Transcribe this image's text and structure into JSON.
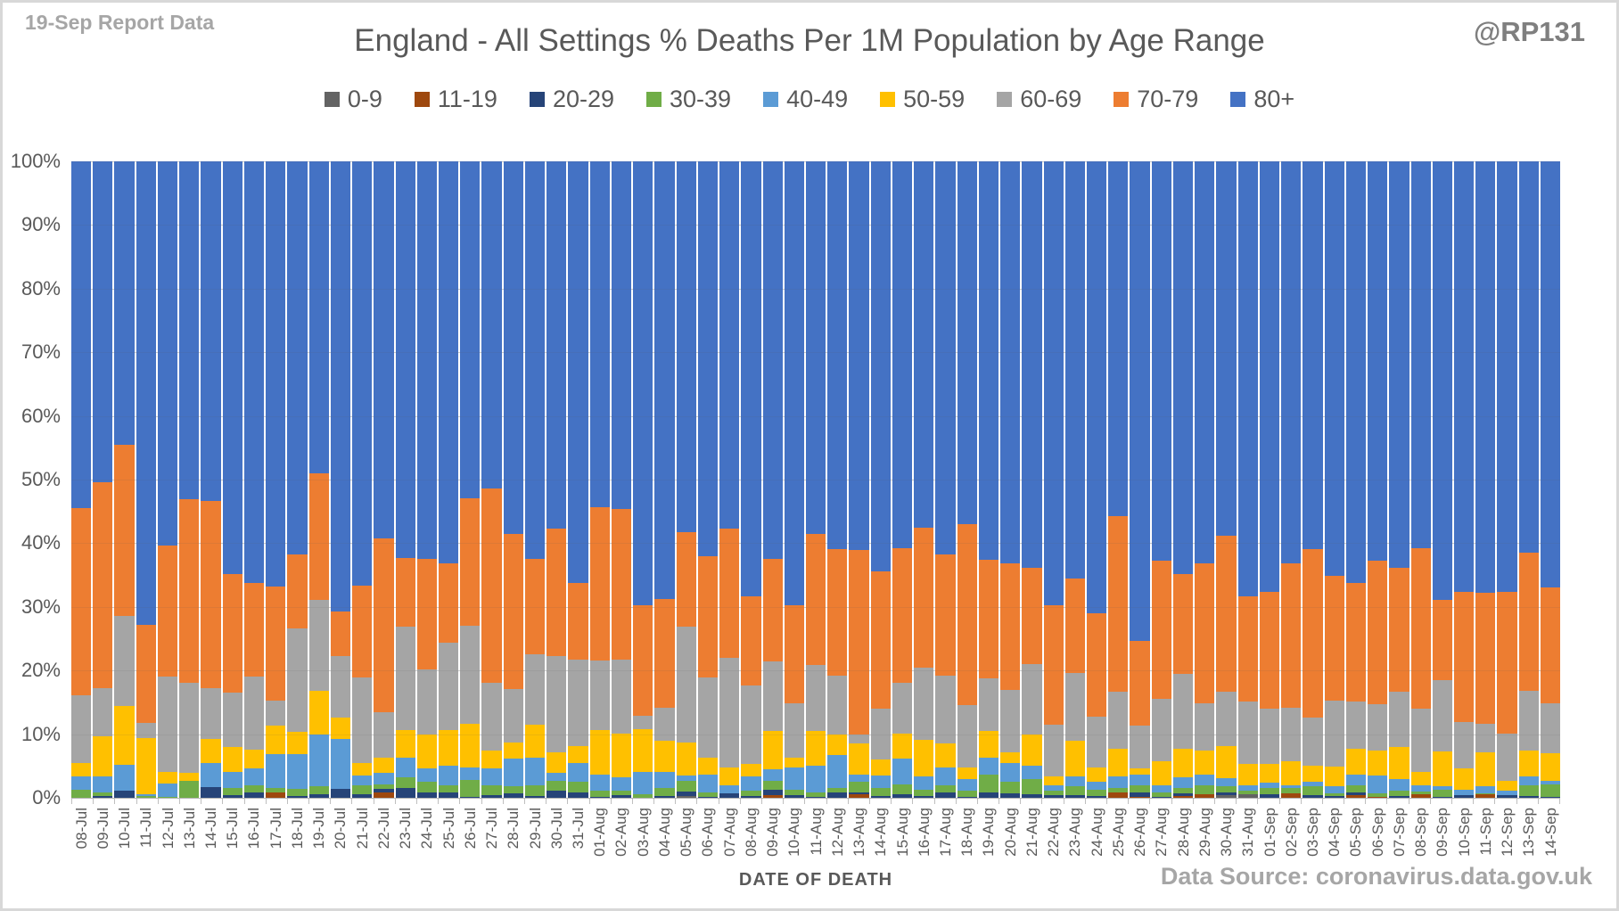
{
  "header": {
    "report_label": "19-Sep Report Data",
    "title": "England - All Settings % Deaths Per 1M Population by Age Range",
    "watermark": "@RP131"
  },
  "footer": {
    "xaxis_title": "DATE OF DEATH",
    "source": "Data Source: coronavirus.data.gov.uk"
  },
  "chart_data": {
    "type": "bar",
    "stacked": true,
    "stacked_percent": true,
    "title": "England - All Settings % Deaths Per 1M Population by Age Range",
    "xlabel": "DATE OF DEATH",
    "ylabel": "",
    "ylim": [
      0,
      100
    ],
    "yticks": [
      "0%",
      "10%",
      "20%",
      "30%",
      "40%",
      "50%",
      "60%",
      "70%",
      "80%",
      "90%",
      "100%"
    ],
    "grid": "horizontal",
    "legend_position": "top",
    "gridline_color": "#d9d9d9",
    "categories": [
      "08-Jul",
      "09-Jul",
      "10-Jul",
      "11-Jul",
      "12-Jul",
      "13-Jul",
      "14-Jul",
      "15-Jul",
      "16-Jul",
      "17-Jul",
      "18-Jul",
      "19-Jul",
      "20-Jul",
      "21-Jul",
      "22-Jul",
      "23-Jul",
      "24-Jul",
      "25-Jul",
      "26-Jul",
      "27-Jul",
      "28-Jul",
      "29-Jul",
      "30-Jul",
      "31-Jul",
      "01-Aug",
      "02-Aug",
      "03-Aug",
      "04-Aug",
      "05-Aug",
      "06-Aug",
      "07-Aug",
      "08-Aug",
      "09-Aug",
      "10-Aug",
      "11-Aug",
      "12-Aug",
      "13-Aug",
      "14-Aug",
      "15-Aug",
      "16-Aug",
      "17-Aug",
      "18-Aug",
      "19-Aug",
      "20-Aug",
      "21-Aug",
      "22-Aug",
      "23-Aug",
      "24-Aug",
      "25-Aug",
      "26-Aug",
      "27-Aug",
      "28-Aug",
      "29-Aug",
      "30-Aug",
      "31-Aug",
      "01-Sep",
      "02-Sep",
      "03-Sep",
      "04-Sep",
      "05-Sep",
      "06-Sep",
      "07-Sep",
      "08-Sep",
      "09-Sep",
      "10-Sep",
      "11-Sep",
      "12-Sep",
      "13-Sep",
      "14-Sep"
    ],
    "series": [
      {
        "name": "0-9",
        "color": "#636363",
        "values": [
          0,
          0,
          0,
          0,
          0,
          0,
          0,
          0,
          0,
          0,
          0,
          0,
          0,
          0,
          0,
          0,
          0,
          0,
          0,
          0,
          0,
          0,
          0,
          0,
          0,
          0,
          0,
          0,
          0.3,
          0,
          0,
          0,
          0,
          0,
          0,
          0,
          0,
          0,
          0,
          0,
          0,
          0,
          0,
          0,
          0,
          0,
          0,
          0,
          0,
          0,
          0,
          0,
          0,
          0.4,
          0.5,
          0,
          0,
          0,
          0,
          0,
          0,
          0,
          0,
          0,
          0,
          0,
          0,
          0,
          0
        ]
      },
      {
        "name": "11-19",
        "color": "#9E480E",
        "values": [
          0,
          0,
          0,
          0,
          0,
          0,
          0,
          0,
          0,
          0.8,
          0,
          0,
          0,
          0,
          0.8,
          0,
          0,
          0,
          0,
          0,
          0,
          0,
          0,
          0,
          0,
          0,
          0,
          0,
          0,
          0,
          0,
          0,
          0.4,
          0,
          0,
          0,
          0.5,
          0,
          0,
          0,
          0,
          0,
          0,
          0,
          0,
          0,
          0,
          0,
          0.9,
          0.2,
          0,
          0.3,
          0.6,
          0,
          0,
          0,
          0.7,
          0,
          0,
          0.4,
          0.2,
          0,
          0.5,
          0,
          0,
          0.5,
          0,
          0,
          0
        ]
      },
      {
        "name": "20-29",
        "color": "#264478",
        "values": [
          0,
          0.3,
          1.1,
          0,
          0,
          0,
          1.7,
          0.4,
          0.9,
          0,
          0.3,
          0.6,
          1.4,
          0.6,
          0.6,
          1.5,
          0.8,
          0.8,
          0.2,
          0.4,
          0.7,
          0.3,
          1.1,
          0.9,
          0.2,
          0.4,
          0,
          0.3,
          0.7,
          0.2,
          0.7,
          0.3,
          0.9,
          0.4,
          0.2,
          0.8,
          0.4,
          0.3,
          0.6,
          0.3,
          0.8,
          0.2,
          0.9,
          0.7,
          0.5,
          0.4,
          0.4,
          0.3,
          0,
          0.7,
          0.2,
          0.4,
          0,
          0.5,
          0,
          0.6,
          0,
          0.4,
          0.3,
          0.4,
          0,
          0.3,
          0,
          0.2,
          0.4,
          0,
          0.4,
          0.3,
          0.2
        ]
      },
      {
        "name": "30-39",
        "color": "#70AD47",
        "values": [
          1.3,
          0.6,
          0,
          0.3,
          0.2,
          2.7,
          0,
          1.1,
          1.0,
          0.7,
          1.1,
          1.2,
          0,
          1.4,
          0.7,
          1.7,
          1.7,
          1.2,
          2.6,
          1.6,
          1.1,
          1.6,
          1.6,
          1.6,
          0.9,
          0.7,
          0.5,
          1.2,
          1.7,
          0.6,
          0,
          0.8,
          1.4,
          0.9,
          0.6,
          0.7,
          1.6,
          1.2,
          1.5,
          1.0,
          1.1,
          0.9,
          2.8,
          1.8,
          2.5,
          0.7,
          1.4,
          0.9,
          0.7,
          1.1,
          0.6,
          0.8,
          1.3,
          0.9,
          0.6,
          0.9,
          0.8,
          1.4,
          0.4,
          1.1,
          0.5,
          0.8,
          0.5,
          1.0,
          0,
          0.2,
          0,
          1.6,
          1.9
        ]
      },
      {
        "name": "40-49",
        "color": "#5B9BD5",
        "values": [
          2.1,
          2.5,
          4.1,
          0.3,
          2.1,
          0,
          3.8,
          2.5,
          2.7,
          5.4,
          5.4,
          8.2,
          7.9,
          1.5,
          1.8,
          3.1,
          2.1,
          3.0,
          2.0,
          2.6,
          4.4,
          4.4,
          1.2,
          3.0,
          2.6,
          2.1,
          3.5,
          2.5,
          0.8,
          2.9,
          1.2,
          2.3,
          1.8,
          3.5,
          4.3,
          5.2,
          1.2,
          2.0,
          4.1,
          2.1,
          2.8,
          1.9,
          2.6,
          3.0,
          2.1,
          0.8,
          1.6,
          1.3,
          1.8,
          1.7,
          1.1,
          1.7,
          1.8,
          1.3,
          0.8,
          0.9,
          0.5,
          0.7,
          1.1,
          1.8,
          2.8,
          1.9,
          0.9,
          0.6,
          0.9,
          1.1,
          0.7,
          1.5,
          0.5
        ]
      },
      {
        "name": "50-59",
        "color": "#FFC000",
        "values": [
          2.0,
          6.3,
          9.2,
          8.8,
          1.8,
          1.2,
          3.8,
          4.0,
          3.0,
          4.5,
          3.6,
          6.8,
          3.3,
          2.0,
          2.4,
          4.4,
          5.3,
          5.7,
          6.8,
          2.8,
          2.5,
          5.2,
          3.3,
          2.6,
          7.0,
          6.9,
          6.6,
          5.0,
          5.2,
          2.6,
          2.9,
          1.9,
          6.0,
          1.5,
          5.4,
          3.3,
          4.9,
          2.5,
          3.9,
          5.7,
          3.8,
          1.7,
          4.2,
          1.7,
          4.8,
          1.4,
          5.6,
          2.3,
          4.3,
          0.9,
          3.9,
          4.5,
          3.7,
          5.0,
          3.4,
          2.9,
          3.8,
          2.6,
          3.1,
          4.0,
          3.9,
          5.0,
          2.1,
          5.5,
          3.3,
          5.4,
          1.6,
          4.0,
          4.4
        ]
      },
      {
        "name": "60-69",
        "color": "#A5A5A5",
        "values": [
          10.7,
          7.5,
          14.2,
          2.4,
          14.9,
          14.1,
          7.9,
          8.5,
          11.4,
          3.8,
          16.2,
          14.3,
          9.6,
          13.4,
          7.1,
          16.2,
          10.2,
          13.7,
          15.4,
          10.7,
          8.4,
          11.1,
          15.0,
          13.6,
          10.8,
          11.6,
          2.1,
          5.2,
          18.2,
          12.6,
          17.2,
          12.4,
          10.9,
          8.6,
          10.3,
          9.2,
          1.4,
          8.0,
          7.9,
          11.3,
          10.7,
          9.8,
          8.3,
          9.7,
          11.1,
          8.2,
          10.6,
          8.0,
          9.0,
          6.7,
          9.8,
          11.8,
          7.5,
          8.6,
          9.8,
          8.7,
          8.3,
          7.5,
          10.3,
          7.4,
          7.3,
          8.7,
          10.0,
          11.2,
          7.3,
          4.4,
          7.4,
          9.4,
          7.8
        ]
      },
      {
        "name": "70-79",
        "color": "#ED7D31",
        "values": [
          29.4,
          32.4,
          26.8,
          15.4,
          20.6,
          28.9,
          29.5,
          18.6,
          14.7,
          18.0,
          11.6,
          19.9,
          7.1,
          14.5,
          27.3,
          10.8,
          17.5,
          12.4,
          20.0,
          30.5,
          24.4,
          14.9,
          20.1,
          12.0,
          24.2,
          23.7,
          17.1,
          17.1,
          14.8,
          19.0,
          20.3,
          14.0,
          16.1,
          15.3,
          20.7,
          19.9,
          29.0,
          21.6,
          21.2,
          22.1,
          19.0,
          28.5,
          18.6,
          20.0,
          15.2,
          18.8,
          14.9,
          16.2,
          27.6,
          13.4,
          21.6,
          15.6,
          22.0,
          24.5,
          16.5,
          18.4,
          22.7,
          26.5,
          19.7,
          18.6,
          22.6,
          19.4,
          25.2,
          12.6,
          20.4,
          20.6,
          22.2,
          21.7,
          18.3
        ]
      },
      {
        "name": "80+",
        "color": "#4472C4",
        "values": [
          54.5,
          50.4,
          44.6,
          72.8,
          60.4,
          53.1,
          53.3,
          64.9,
          66.3,
          66.8,
          61.8,
          49.0,
          70.7,
          66.6,
          59.3,
          62.3,
          62.4,
          63.2,
          53.0,
          51.4,
          58.5,
          62.5,
          57.7,
          66.3,
          54.3,
          54.6,
          68.9,
          68.7,
          58.3,
          62.1,
          57.7,
          68.3,
          62.5,
          69.8,
          58.5,
          60.9,
          61.0,
          64.4,
          60.8,
          57.5,
          61.8,
          57.0,
          62.6,
          63.1,
          63.8,
          69.7,
          65.5,
          71.0,
          55.7,
          75.3,
          62.8,
          64.9,
          63.1,
          58.8,
          68.4,
          67.6,
          63.2,
          60.9,
          65.1,
          66.3,
          62.7,
          63.9,
          60.8,
          68.9,
          67.7,
          67.8,
          67.7,
          61.5,
          66.9
        ]
      }
    ]
  }
}
